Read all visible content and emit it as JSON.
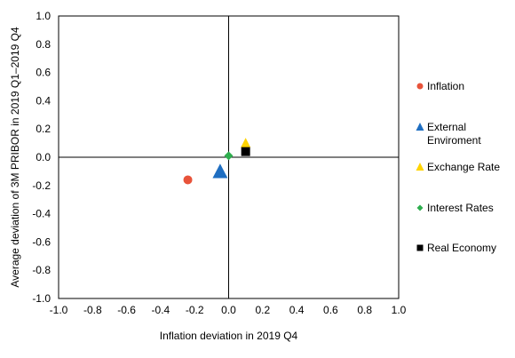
{
  "chart_data": {
    "type": "scatter",
    "xlabel": "Inflation deviation in 2019 Q4",
    "ylabel": "Average deviation of 3M PRIBOR in 2019 Q1–2019 Q4",
    "xlim": [
      -1.0,
      1.0
    ],
    "ylim": [
      -1.0,
      1.0
    ],
    "x_ticks": [
      "-1.0",
      "-0.8",
      "-0.6",
      "-0.4",
      "-0.2",
      "0.0",
      "0.2",
      "0.4",
      "0.6",
      "0.8",
      "1.0"
    ],
    "y_ticks": [
      "1.0",
      "0.8",
      "0.6",
      "0.4",
      "0.2",
      "0.0",
      "-0.2",
      "-0.4",
      "-0.6",
      "-0.8",
      "-1.0"
    ],
    "grid": false,
    "legend_position": "right",
    "series": [
      {
        "name": "Inflation",
        "marker": "circle",
        "color": "#E8533A",
        "x": -0.24,
        "y": -0.16
      },
      {
        "name": "External Enviroment",
        "label_lines": [
          "External",
          "Enviroment"
        ],
        "marker": "triangle",
        "color": "#1F6EC1",
        "x": -0.05,
        "y": -0.1
      },
      {
        "name": "Exchange Rate",
        "marker": "triangle",
        "color": "#FFD400",
        "x": 0.1,
        "y": 0.1
      },
      {
        "name": "Interest Rates",
        "marker": "diamond",
        "color": "#2EAE4E",
        "x": 0.0,
        "y": 0.01
      },
      {
        "name": "Real Economy",
        "marker": "square",
        "color": "#000000",
        "x": 0.1,
        "y": 0.04
      }
    ]
  }
}
